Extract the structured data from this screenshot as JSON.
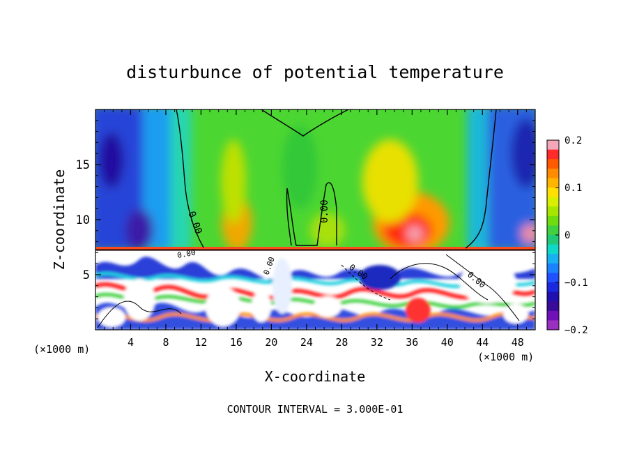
{
  "chart_data": {
    "type": "heatmap",
    "title": "disturbunce of potential temperature",
    "xlabel": "X-coordinate",
    "ylabel": "Z-coordinate",
    "x_unit_left": "(×1000 m)",
    "x_unit_right": "(×1000 m)",
    "footer": "CONTOUR INTERVAL = 3.000E-01",
    "xlim": [
      0,
      50
    ],
    "ylim": [
      0,
      20
    ],
    "x_ticks": [
      "4",
      "8",
      "12",
      "16",
      "20",
      "24",
      "28",
      "32",
      "36",
      "40",
      "44",
      "48"
    ],
    "y_ticks": [
      "5",
      "10",
      "15"
    ],
    "colorbar": {
      "min": -0.2,
      "max": 0.2,
      "tick_labels": [
        "0.2",
        "0.1",
        "0",
        "−0.1",
        "−0.2"
      ],
      "tick_values": [
        0.2,
        0.1,
        0,
        -0.1,
        -0.2
      ]
    },
    "contour_labels": [
      "0.00",
      "0.00",
      "0.00",
      "0.00",
      "0.00",
      "0.00"
    ],
    "background_color": "#ffffff"
  }
}
